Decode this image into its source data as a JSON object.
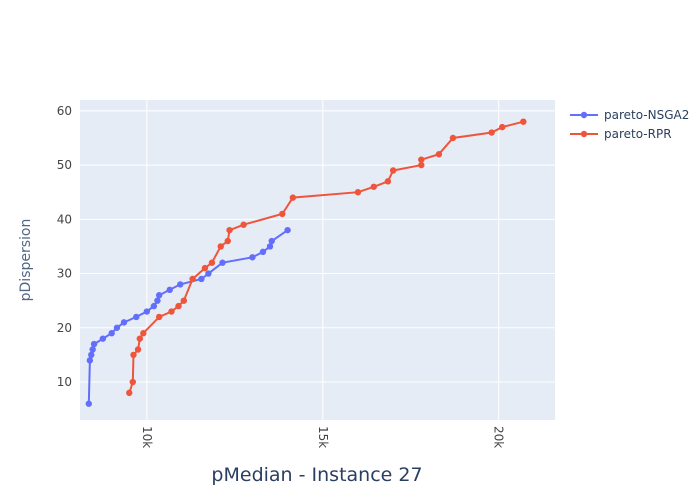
{
  "chart_data": {
    "type": "line",
    "title": "pMedian - Instance 27",
    "xlabel": "",
    "ylabel": "pDispersion",
    "xlim": [
      8100,
      21600
    ],
    "ylim": [
      3,
      62
    ],
    "x_ticks": [
      10000,
      15000,
      20000
    ],
    "x_tick_labels": [
      "10k",
      "15k",
      "20k"
    ],
    "y_ticks": [
      10,
      20,
      30,
      40,
      50,
      60
    ],
    "y_tick_labels": [
      "10",
      "20",
      "30",
      "40",
      "50",
      "60"
    ],
    "grid": true,
    "legend_position": "top-right",
    "series": [
      {
        "name": "pareto-NSGA2",
        "color": "#636efa",
        "x": [
          8350,
          8380,
          8420,
          8460,
          8500,
          8750,
          9000,
          9150,
          9350,
          9700,
          10000,
          10200,
          10300,
          10350,
          10650,
          10950,
          11550,
          11750,
          12150,
          13000,
          13300,
          13500,
          13550,
          14000
        ],
        "y": [
          6,
          14,
          15,
          16,
          17,
          18,
          19,
          20,
          21,
          22,
          23,
          24,
          25,
          26,
          27,
          28,
          29,
          30,
          32,
          33,
          34,
          35,
          36,
          38
        ]
      },
      {
        "name": "pareto-RPR",
        "color": "#ef553b",
        "x": [
          9500,
          9600,
          9620,
          9750,
          9800,
          9900,
          10350,
          10700,
          10900,
          11050,
          11300,
          11650,
          11850,
          12100,
          12300,
          12350,
          12750,
          13850,
          14150,
          16000,
          16450,
          16850,
          17000,
          17800,
          17800,
          18300,
          18700,
          19800,
          20100,
          20700
        ],
        "y": [
          8,
          10,
          15,
          16,
          18,
          19,
          22,
          23,
          24,
          25,
          29,
          31,
          32,
          35,
          36,
          38,
          39,
          41,
          44,
          45,
          46,
          47,
          49,
          50,
          51,
          52,
          55,
          56,
          57,
          58
        ]
      }
    ]
  },
  "colors": {
    "plot_background": "#e5ecf6",
    "grid": "#ffffff",
    "page_background": "#ffffff"
  }
}
